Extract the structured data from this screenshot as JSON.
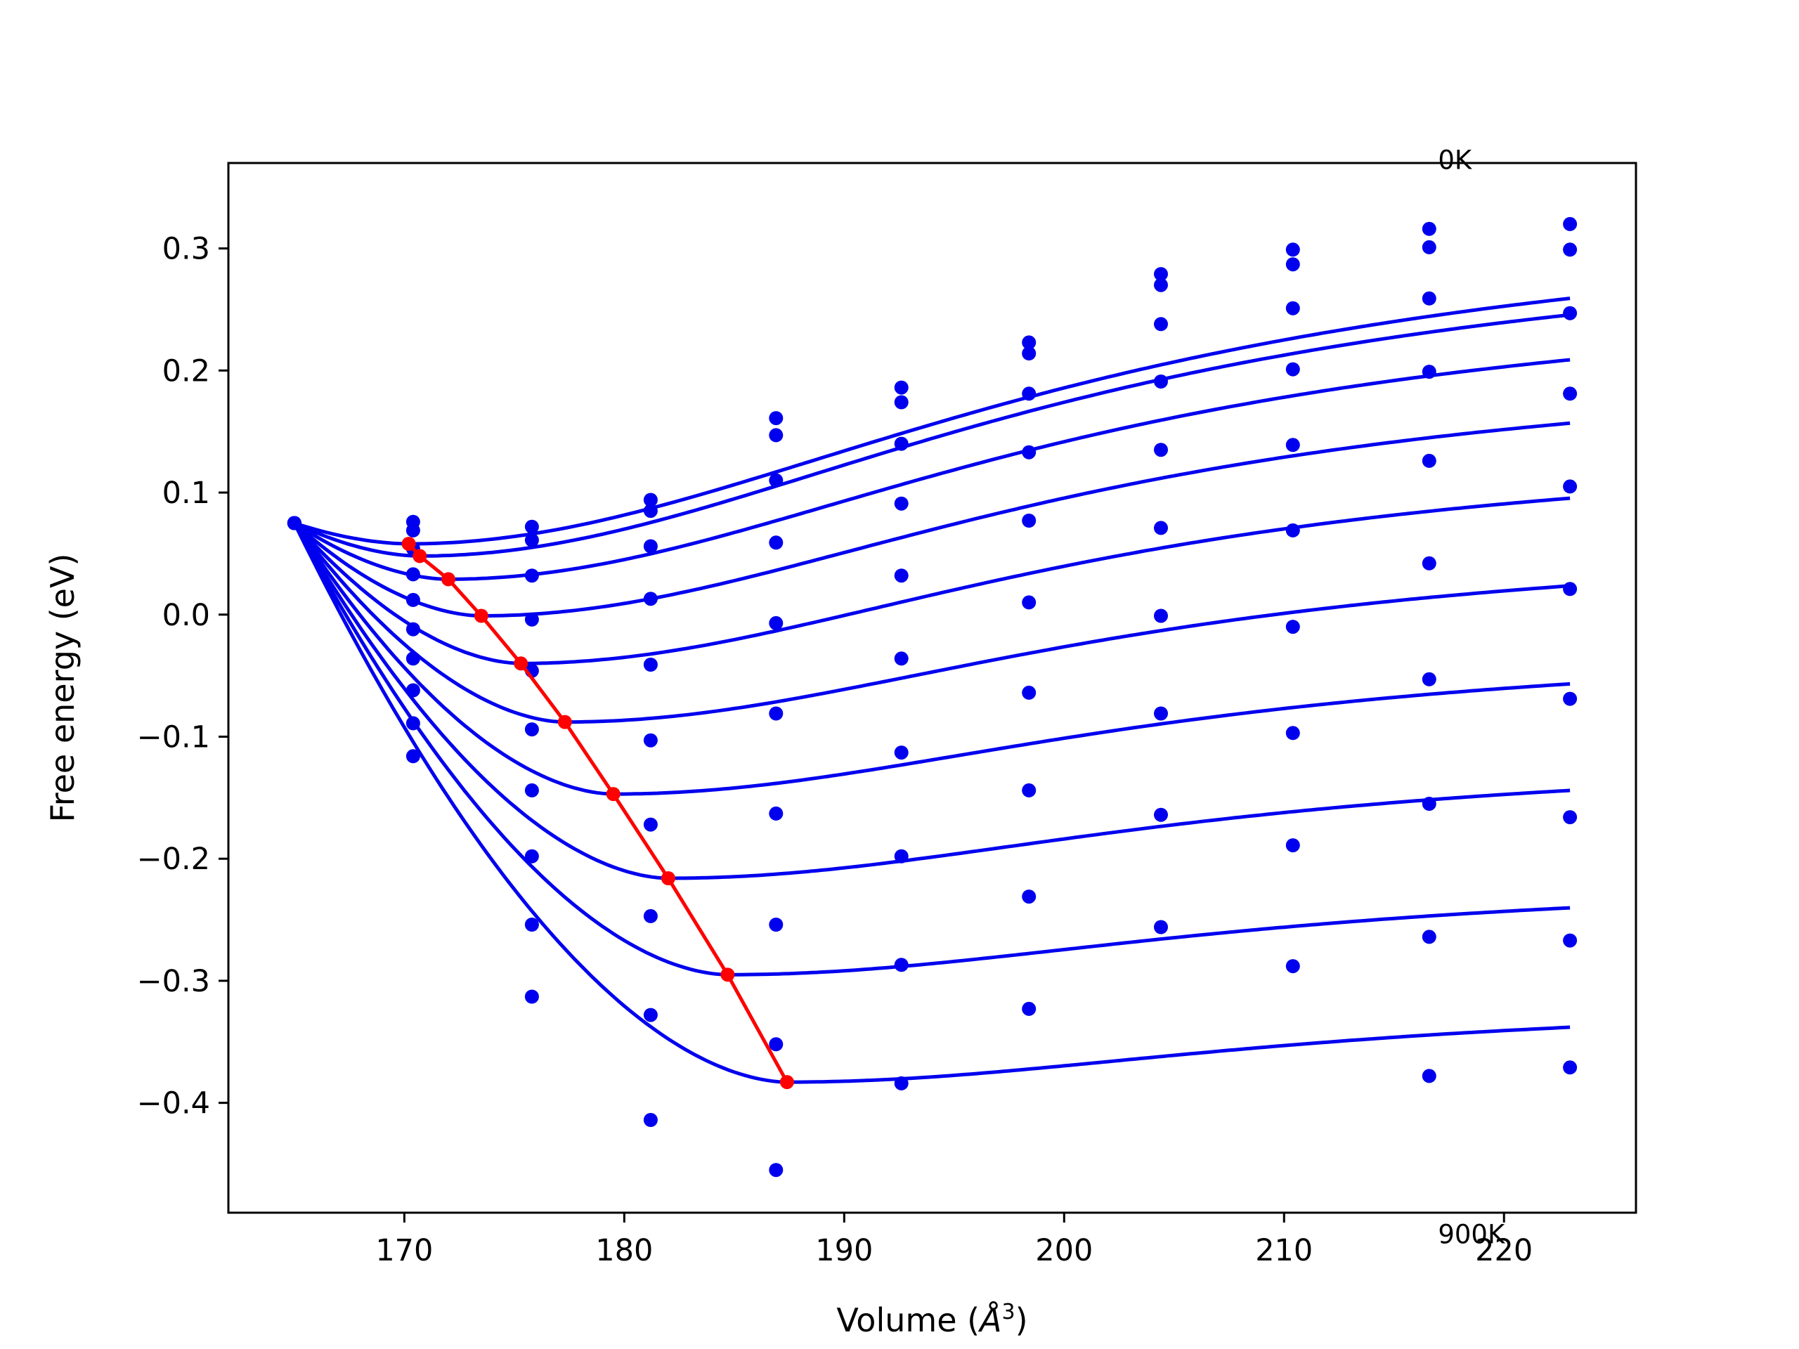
{
  "chart_data": {
    "type": "line",
    "title": "",
    "xlabel": "Volume (",
    "xlabel_unit": "Å",
    "xlabel_sup": "3",
    "xlabel_close": ")",
    "ylabel": "Free energy (eV)",
    "xlim": [
      162.0,
      226.0
    ],
    "ylim": [
      -0.49,
      0.37
    ],
    "xticks": [
      170,
      180,
      190,
      200,
      210,
      220
    ],
    "xtick_labels": [
      "170",
      "180",
      "190",
      "200",
      "210",
      "220"
    ],
    "yticks": [
      0.3,
      0.2,
      0.1,
      0.0,
      -0.1,
      -0.2,
      -0.3,
      -0.4
    ],
    "ytick_labels": [
      "0.3",
      "0.2",
      "0.1",
      "0.0",
      "−0.1",
      "−0.2",
      "−0.3",
      "−0.4"
    ],
    "grid": false,
    "colors": {
      "fit": "#0000ee",
      "points": "#0000ee",
      "minima": "#ff0000"
    },
    "annotations": [
      {
        "text": "0K",
        "x": 217.0,
        "y": 0.365
      },
      {
        "text": "900K",
        "x": 217.0,
        "y": -0.515
      }
    ],
    "point_x": [
      165,
      170.4,
      175.8,
      181.2,
      186.9,
      192.6,
      198.4,
      204.4,
      210.4,
      216.6,
      223.0
    ],
    "series": [
      {
        "temperature_index": 0,
        "points": [
          0.075,
          0.076,
          0.072,
          0.094,
          0.161,
          0.186,
          0.223,
          0.279,
          0.299,
          0.316,
          0.32
        ],
        "fit": {
          "v0": 170.2,
          "f0": 0.058,
          "rise": 0.275,
          "w": 32,
          "left": 0.017
        }
      },
      {
        "temperature_index": 1,
        "points": [
          0.075,
          0.069,
          0.061,
          0.085,
          0.147,
          0.174,
          0.214,
          0.27,
          0.287,
          0.301,
          0.299
        ],
        "fit": {
          "v0": 170.7,
          "f0": 0.048,
          "rise": 0.267,
          "w": 31,
          "left": 0.027
        }
      },
      {
        "temperature_index": 2,
        "points": [
          0.075,
          0.054,
          0.032,
          0.056,
          0.11,
          0.14,
          0.181,
          0.238,
          0.251,
          0.259,
          0.247
        ],
        "fit": {
          "v0": 172.0,
          "f0": 0.029,
          "rise": 0.242,
          "w": 30,
          "left": 0.046
        }
      },
      {
        "temperature_index": 3,
        "points": [
          0.075,
          0.033,
          -0.004,
          0.013,
          0.059,
          0.091,
          0.133,
          0.191,
          0.201,
          0.199,
          0.181
        ],
        "fit": {
          "v0": 173.5,
          "f0": -0.001,
          "rise": 0.212,
          "w": 29,
          "left": 0.076
        }
      },
      {
        "temperature_index": 4,
        "points": [
          0.075,
          0.012,
          -0.046,
          -0.041,
          -0.007,
          0.032,
          0.077,
          0.135,
          0.139,
          0.126,
          0.105
        ],
        "fit": {
          "v0": 175.3,
          "f0": -0.04,
          "rise": 0.182,
          "w": 28,
          "left": 0.115
        }
      },
      {
        "temperature_index": 5,
        "points": [
          0.075,
          -0.012,
          -0.094,
          -0.103,
          -0.081,
          -0.036,
          0.01,
          0.071,
          0.069,
          0.042,
          0.021
        ],
        "fit": {
          "v0": 177.3,
          "f0": -0.088,
          "rise": 0.152,
          "w": 27.5,
          "left": 0.163
        }
      },
      {
        "temperature_index": 6,
        "points": [
          0.075,
          -0.036,
          -0.144,
          -0.172,
          -0.163,
          -0.113,
          -0.064,
          -0.001,
          -0.01,
          -0.053,
          -0.069
        ],
        "fit": {
          "v0": 179.5,
          "f0": -0.147,
          "rise": 0.125,
          "w": 27,
          "left": 0.222
        }
      },
      {
        "temperature_index": 7,
        "points": [
          0.075,
          -0.062,
          -0.198,
          -0.247,
          -0.254,
          -0.198,
          -0.144,
          -0.081,
          -0.097,
          -0.155,
          -0.166
        ],
        "fit": {
          "v0": 182.0,
          "f0": -0.216,
          "rise": 0.102,
          "w": 26.5,
          "left": 0.291
        }
      },
      {
        "temperature_index": 8,
        "points": [
          0.075,
          -0.089,
          -0.254,
          -0.328,
          -0.352,
          -0.287,
          -0.231,
          -0.164,
          -0.189,
          -0.264,
          -0.267
        ],
        "fit": {
          "v0": 184.7,
          "f0": -0.295,
          "rise": 0.08,
          "w": 26,
          "left": 0.37
        }
      },
      {
        "temperature_index": 9,
        "points": [
          0.075,
          -0.116,
          -0.313,
          -0.414,
          -0.455,
          -0.384,
          -0.323,
          -0.256,
          -0.288,
          -0.378,
          -0.371
        ],
        "fit": {
          "v0": 187.4,
          "f0": -0.383,
          "rise": 0.068,
          "w": 25.5,
          "left": 0.458
        }
      }
    ],
    "minima": {
      "x": [
        170.2,
        170.7,
        172.0,
        173.5,
        175.3,
        177.3,
        179.5,
        182.0,
        184.7,
        187.4
      ],
      "y": [
        0.058,
        0.048,
        0.029,
        -0.001,
        -0.04,
        -0.088,
        -0.147,
        -0.216,
        -0.295,
        -0.383
      ]
    }
  }
}
